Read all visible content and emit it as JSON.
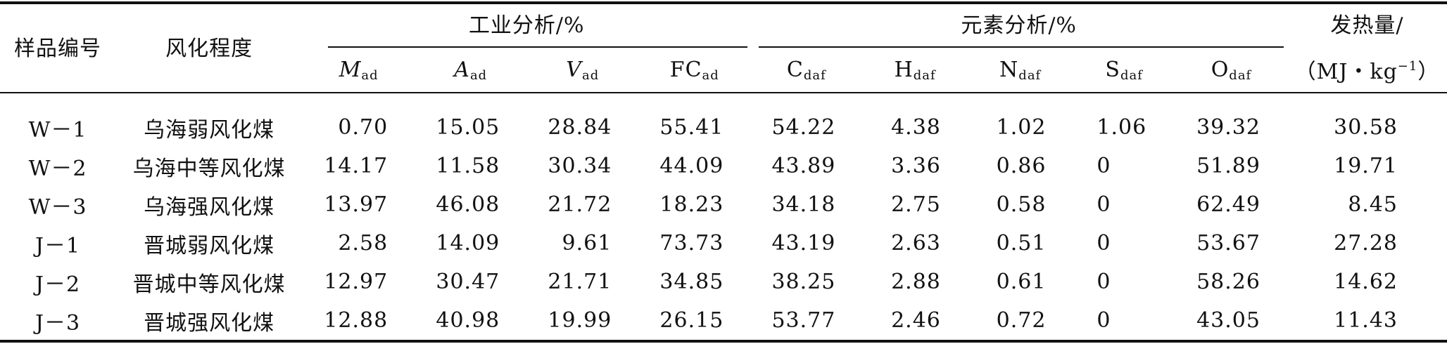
{
  "headers": {
    "sample_id": "样品编号",
    "weathering_degree": "风化程度",
    "proximate_group": "工业分析/%",
    "ultimate_group": "元素分析/%",
    "heat_line1": "发热量/",
    "heat_line2_pre": "（MJ・kg",
    "heat_line2_sup": "−1",
    "heat_line2_post": "）",
    "proximate_cols": [
      {
        "main": "M",
        "sub": "ad",
        "italic": true
      },
      {
        "main": "A",
        "sub": "ad",
        "italic": true
      },
      {
        "main": "V",
        "sub": "ad",
        "italic": true
      },
      {
        "main": "FC",
        "sub": "ad",
        "italic": false
      }
    ],
    "ultimate_cols": [
      {
        "main": "C",
        "sub": "daf"
      },
      {
        "main": "H",
        "sub": "daf"
      },
      {
        "main": "N",
        "sub": "daf"
      },
      {
        "main": "S",
        "sub": "daf"
      },
      {
        "main": "O",
        "sub": "daf"
      }
    ]
  },
  "rows": [
    {
      "id": "W－1",
      "degree": "乌海弱风化煤",
      "values": [
        "0.70",
        "15.05",
        "28.84",
        "55.41",
        "54.22",
        "4.38",
        "1.02",
        "1.06",
        "39.32",
        "30.58"
      ]
    },
    {
      "id": "W－2",
      "degree": "乌海中等风化煤",
      "values": [
        "14.17",
        "11.58",
        "30.34",
        "44.09",
        "43.89",
        "3.36",
        "0.86",
        "0",
        "51.89",
        "19.71"
      ]
    },
    {
      "id": "W－3",
      "degree": "乌海强风化煤",
      "values": [
        "13.97",
        "46.08",
        "21.72",
        "18.23",
        "34.18",
        "2.75",
        "0.58",
        "0",
        "62.49",
        "8.45"
      ]
    },
    {
      "id": "J－1",
      "degree": "晋城弱风化煤",
      "values": [
        "2.58",
        "14.09",
        "9.61",
        "73.73",
        "43.19",
        "2.63",
        "0.51",
        "0",
        "53.67",
        "27.28"
      ]
    },
    {
      "id": "J－2",
      "degree": "晋城中等风化煤",
      "values": [
        "12.97",
        "30.47",
        "21.71",
        "34.85",
        "38.25",
        "2.88",
        "0.61",
        "0",
        "58.26",
        "14.62"
      ]
    },
    {
      "id": "J－3",
      "degree": "晋城强风化煤",
      "values": [
        "12.88",
        "40.98",
        "19.99",
        "26.15",
        "53.77",
        "2.46",
        "0.72",
        "0",
        "43.05",
        "11.43"
      ]
    }
  ]
}
